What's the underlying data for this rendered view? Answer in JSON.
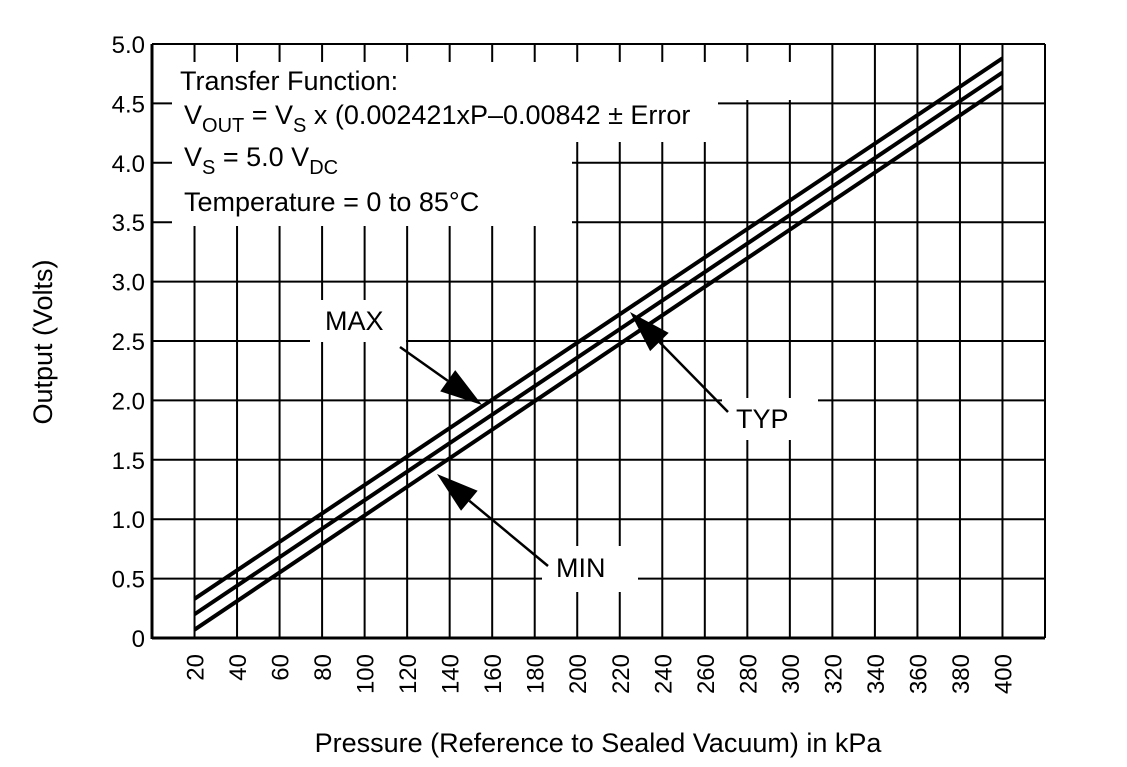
{
  "chart_data": {
    "type": "line",
    "xlabel": "Pressure (Reference to Sealed Vacuum) in kPa",
    "ylabel": "Output (Volts)",
    "xlim": [
      0,
      420
    ],
    "ylim": [
      0,
      5.0
    ],
    "x_ticks": [
      "20",
      "40",
      "60",
      "80",
      "100",
      "120",
      "140",
      "160",
      "180",
      "200",
      "220",
      "240",
      "260",
      "280",
      "300",
      "320",
      "340",
      "360",
      "380",
      "400"
    ],
    "y_ticks": [
      "0",
      "0.5",
      "1.0",
      "1.5",
      "2.0",
      "2.5",
      "3.0",
      "3.5",
      "4.0",
      "4.5",
      "5.0"
    ],
    "grid": true,
    "series": [
      {
        "name": "MAX",
        "x": [
          20,
          400
        ],
        "y": [
          0.33,
          4.88
        ]
      },
      {
        "name": "TYP",
        "x": [
          20,
          400
        ],
        "y": [
          0.2,
          4.76
        ]
      },
      {
        "name": "MIN",
        "x": [
          20,
          400
        ],
        "y": [
          0.07,
          4.64
        ]
      }
    ],
    "annotations": {
      "transfer_title": "Transfer Function:",
      "vout_main": "V",
      "vout_sub": "OUT",
      "eq_mid": " = V",
      "vs_sub": "S",
      "eq_rest": " x (0.002421xP–0.00842 ± Error",
      "vs_main": "V",
      "vs_sub2": "S",
      "vs_mid": " = 5.0 V",
      "vdc_sub": "DC",
      "temperature": "Temperature = 0 to 85°C",
      "max_label": "MAX",
      "typ_label": "TYP",
      "min_label": "MIN"
    }
  }
}
